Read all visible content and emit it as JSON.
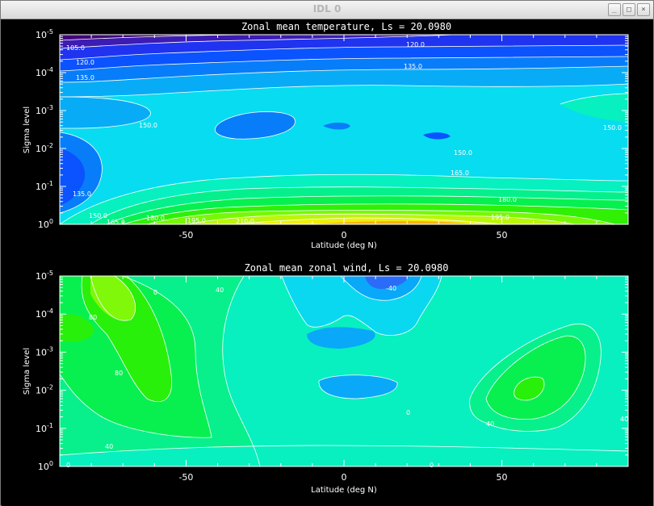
{
  "window": {
    "title": "IDL 0",
    "buttons": [
      "minimize",
      "maximize",
      "close"
    ]
  },
  "chart_data": [
    {
      "type": "contour",
      "title": "Zonal mean temperature, Ls =      20.0980",
      "xlabel": "Latitude (deg N)",
      "ylabel": "Sigma level",
      "xlim": [
        -90,
        90
      ],
      "ylim": [
        1,
        1e-05
      ],
      "yscale": "log",
      "xticks": [
        -50,
        0,
        50
      ],
      "ytick_exponents": [
        -5,
        -4,
        -3,
        -2,
        -1,
        0
      ],
      "contour_labels": [
        "105.0",
        "120.0",
        "120.0",
        "135.0",
        "135.0",
        "150.0",
        "150.0",
        "150.0",
        "165.0",
        "135.0",
        "150.0",
        "165.0",
        "180.0",
        "195.0",
        "210.0",
        "180.0",
        "195.0"
      ],
      "colors": [
        "#43057a",
        "#3c1cb2",
        "#1f33f0",
        "#0a53ff",
        "#087df9",
        "#08acf6",
        "#08dcf0",
        "#06f0c0",
        "#05f08c",
        "#06f050",
        "#30f006",
        "#78f806",
        "#bcf60a",
        "#f0f00a",
        "#f8b40a",
        "#f8820a"
      ]
    },
    {
      "type": "contour",
      "title": "Zonal mean zonal wind, Ls =      20.0980",
      "xlabel": "Latitude (deg N)",
      "ylabel": "Sigma level",
      "xlim": [
        -90,
        90
      ],
      "ylim": [
        1,
        1e-05
      ],
      "yscale": "log",
      "xticks": [
        -50,
        0,
        50
      ],
      "ytick_exponents": [
        -5,
        -4,
        -3,
        -2,
        -1,
        0
      ],
      "contour_labels": [
        "-40",
        "80",
        "40",
        "40",
        "80",
        "0",
        "0",
        "40",
        "40",
        "0",
        "0"
      ],
      "colors": [
        "#2a6cf8",
        "#0aa8f8",
        "#0ad8f0",
        "#08f0c0",
        "#08f08c",
        "#08f050",
        "#28f00a",
        "#80f80a"
      ]
    }
  ]
}
